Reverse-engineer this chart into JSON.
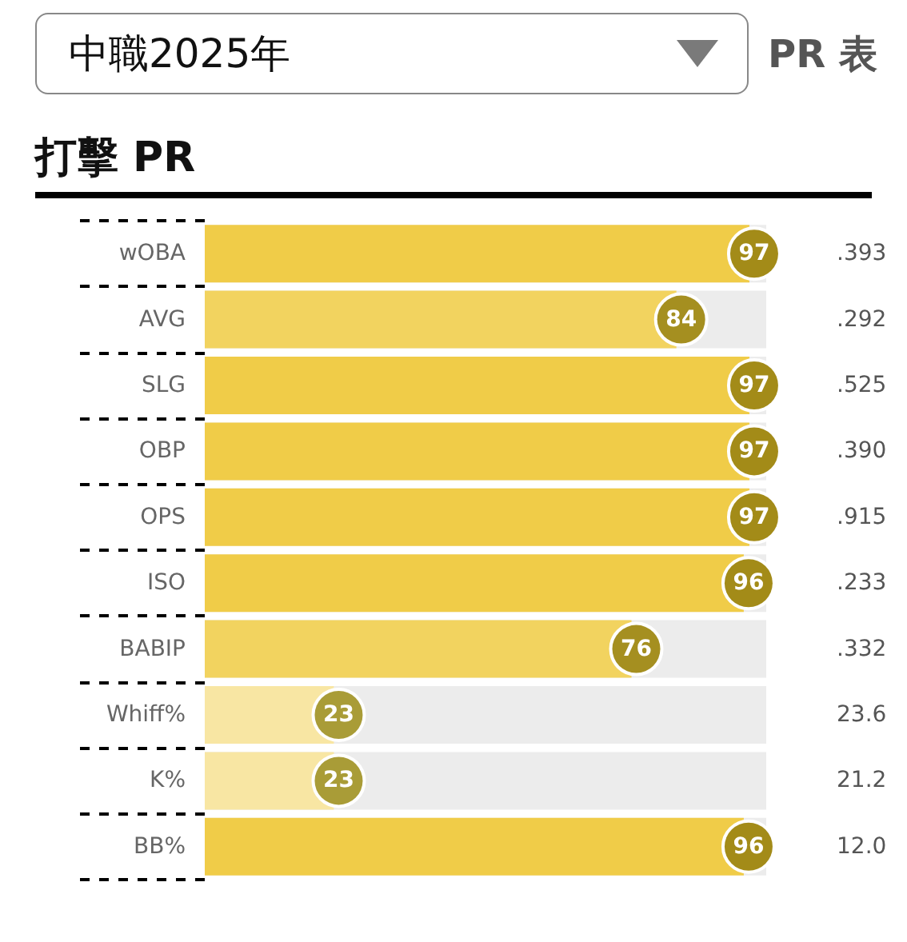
{
  "chart_data": {
    "type": "bar",
    "orientation": "horizontal",
    "title": "打擊 PR",
    "subtitle": "中職2025年",
    "categories": [
      "wOBA",
      "AVG",
      "SLG",
      "OBP",
      "OPS",
      "ISO",
      "BABIP",
      "Whiff%",
      "K%",
      "BB%"
    ],
    "values": [
      97,
      84,
      97,
      97,
      97,
      96,
      76,
      23,
      23,
      96
    ],
    "colors": [
      "#f0cc48",
      "#f2d35f",
      "#f0cc48",
      "#f0cc48",
      "#f0cc48",
      "#f0cc48",
      "#f2d35f",
      "#f8e6a3",
      "#f8e6a3",
      "#f0cc48"
    ],
    "xlim": [
      0,
      100
    ],
    "tick_labels": "y",
    "data_labels": true,
    "annotations": [
      "PR 表",
      ".393",
      ".292",
      ".525",
      ".390",
      ".915",
      ".233",
      ".332",
      "23.6",
      "21.2",
      "12.0"
    ]
  }
}
